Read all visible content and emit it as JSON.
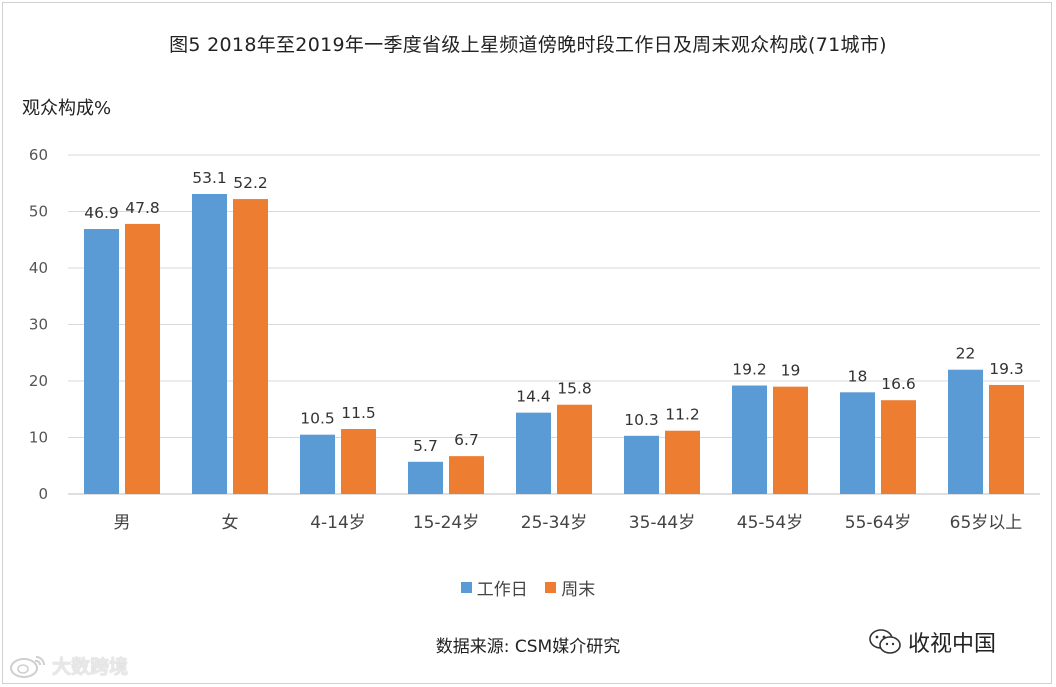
{
  "chart_data": {
    "type": "bar",
    "title": "图5  2018年至2019年一季度省级上星频道傍晚时段工作日及周末观众构成(71城市)",
    "ylabel": "观众构成%",
    "xlabel": "",
    "ylim": [
      0,
      60
    ],
    "yticks": [
      0,
      10,
      20,
      30,
      40,
      50,
      60
    ],
    "grid": true,
    "legend_position": "bottom",
    "categories": [
      "男",
      "女",
      "4-14岁",
      "15-24岁",
      "25-34岁",
      "35-44岁",
      "45-54岁",
      "55-64岁",
      "65岁以上"
    ],
    "series": [
      {
        "name": "工作日",
        "color": "#5b9bd5",
        "values": [
          46.9,
          53.1,
          10.5,
          5.7,
          14.4,
          10.3,
          19.2,
          18,
          22
        ]
      },
      {
        "name": "周末",
        "color": "#ed7d31",
        "values": [
          47.8,
          52.2,
          11.5,
          6.7,
          15.8,
          11.2,
          19,
          16.6,
          19.3
        ]
      }
    ]
  },
  "source_text": "数据来源:  CSM媒介研究",
  "brand_text": "收视中国",
  "watermark_text": "大数跨境",
  "icons": {
    "brand": "wechat-icon",
    "watermark": "weibo-icon"
  }
}
